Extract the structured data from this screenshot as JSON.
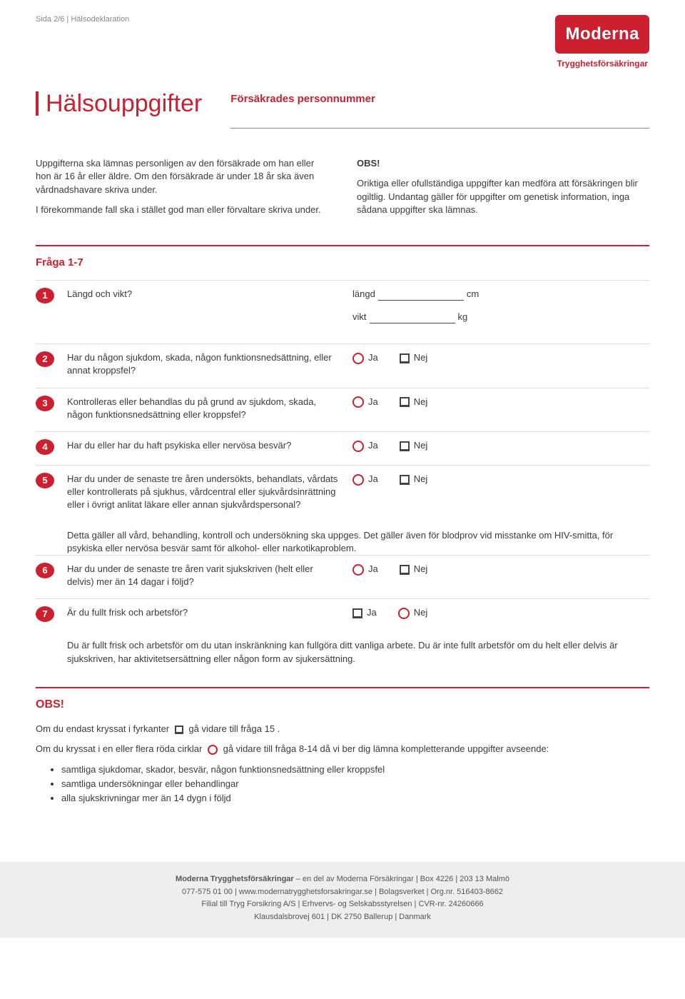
{
  "header": {
    "pageline": "Sida 2/6  |  Hälsodeklaration",
    "logo_main": "Moderna",
    "logo_sub": "Trygghetsförsäkringar",
    "title": "Hälsouppgifter",
    "pn_label": "Försäkrades personnummer"
  },
  "intro": {
    "left1": "Uppgifterna ska lämnas personligen av den försäkrade om han eller hon är 16 år eller äldre. Om den försäkrade är under 18 år ska även vårdnadshavare skriva under.",
    "left2": "I förekommande fall ska i stället god man eller förvaltare skriva under.",
    "right_title": "OBS!",
    "right_body": "Oriktiga eller ofullständiga uppgifter kan medföra att försäkringen blir ogiltlig. Undantag gäller för uppgifter om genetisk information, inga sådana uppgifter ska lämnas."
  },
  "section_title": "Fråga 1-7",
  "q": [
    {
      "n": "1",
      "text": "Längd och vikt?",
      "type": "measure",
      "m1_label": "längd",
      "m1_unit": "cm",
      "m2_label": "vikt",
      "m2_unit": "kg"
    },
    {
      "n": "2",
      "text": "Har du någon sjukdom, skada, någon funktionsnedsättning, eller annat kroppsfel?",
      "type": "yn",
      "ja_circle": true
    },
    {
      "n": "3",
      "text": "Kontrolleras eller behandlas du på grund av sjukdom, skada, någon funktionsnedsättning eller kroppsfel?",
      "type": "yn",
      "ja_circle": true
    },
    {
      "n": "4",
      "text": "Har du eller har du haft psykiska eller nervösa besvär?",
      "type": "yn",
      "ja_circle": true
    },
    {
      "n": "5",
      "text": "Har du under de senaste tre åren undersökts, behandlats, vårdats eller kontrollerats på sjukhus, vårdcentral eller sjukvårdsinrättning eller i övrigt anlitat läkare eller annan sjukvårdspersonal?",
      "type": "yn",
      "ja_circle": true,
      "note": "Detta gäller all vård, behandling, kontroll och undersökning ska uppges. Det gäller även för blodprov vid misstanke om HIV-smitta, för psykiska eller nervösa besvär samt för alkohol- eller narkotikaproblem."
    },
    {
      "n": "6",
      "text": "Har du under de senaste tre åren varit sjukskriven (helt eller delvis) mer än 14 dagar i följd?",
      "type": "yn",
      "ja_circle": true
    },
    {
      "n": "7",
      "text": "Är du fullt frisk och arbetsför?",
      "type": "yn",
      "ja_circle": false,
      "note": "Du är fullt frisk och arbetsför om du utan inskränkning kan fullgöra ditt vanliga arbete. Du är inte fullt arbetsför om du helt eller delvis är sjukskriven, har aktivitetsersättning eller någon form av sjukersättning."
    }
  ],
  "labels": {
    "ja": "Ja",
    "nej": "Nej"
  },
  "obs": {
    "title": "OBS!",
    "line1a": "Om du endast kryssat i fyrkanter",
    "line1b": "gå vidare till fråga 15 .",
    "line2a": "Om du kryssat i en eller flera röda cirklar",
    "line2b": "gå vidare till fråga 8-14 då vi ber dig lämna kompletterande uppgifter avseende:",
    "bullets": [
      "samtliga sjukdomar, skador, besvär, någon funktionsnedsättning eller kroppsfel",
      "samtliga undersökningar eller behandlingar",
      "alla sjukskrivningar mer än 14 dygn i följd"
    ]
  },
  "footer": {
    "l1a": "Moderna Trygghetsförsäkringar",
    "l1b": " – en del av Moderna Försäkringar | Box 4226 | 203 13 Malmö",
    "l2": "077-575 01 00 | www.modernatrygghetsforsakringar.se | Bolagsverket | Org.nr. 516403-8662",
    "l3": "Filial till Tryg Forsikring A/S | Erhvervs- og Selskabsstyrelsen | CVR-nr. 24260666",
    "l4": "Klausdalsbrovej 601 | DK 2750 Ballerup | Danmark"
  }
}
